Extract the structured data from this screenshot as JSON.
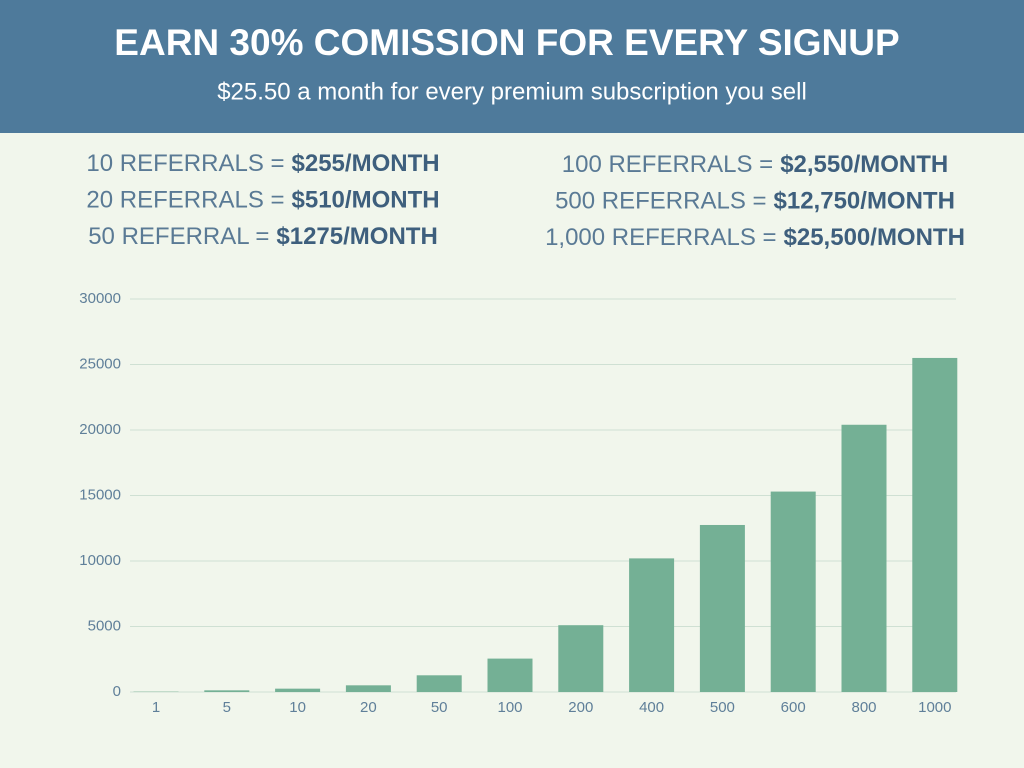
{
  "header": {
    "title": "EARN 30% COMISSION FOR EVERY SIGNUP",
    "subtitle": "$25.50 a month for every premium subscription you sell"
  },
  "referrals": {
    "left": [
      {
        "label": "10 REFERRALS =",
        "amount": "$255/MONTH"
      },
      {
        "label": "20 REFERRALS =",
        "amount": "$510/MONTH"
      },
      {
        "label": "50 REFERRAL =",
        "amount": "$1275/MONTH"
      }
    ],
    "right": [
      {
        "label": "100 REFERRALS =",
        "amount": "$2,550/MONTH"
      },
      {
        "label": "500 REFERRALS =",
        "amount": "$12,750/MONTH"
      },
      {
        "label": "1,000 REFERRALS =",
        "amount": "$25,500/MONTH"
      }
    ]
  },
  "chart_data": {
    "type": "bar",
    "categories": [
      "1",
      "5",
      "10",
      "20",
      "50",
      "100",
      "200",
      "400",
      "500",
      "600",
      "800",
      "1000"
    ],
    "values": [
      25.5,
      127.5,
      255,
      510,
      1275,
      2550,
      5100,
      10200,
      12750,
      15300,
      20400,
      25500
    ],
    "color": "#74b095",
    "ylim": [
      0,
      30000
    ],
    "yticks": [
      0,
      5000,
      10000,
      15000,
      20000,
      25000,
      30000
    ],
    "grid": true
  }
}
